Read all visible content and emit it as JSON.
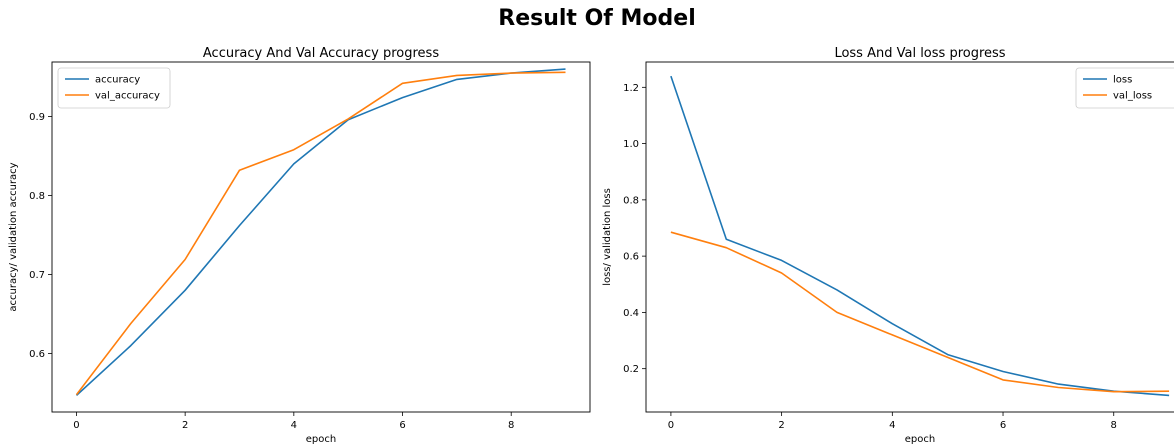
{
  "figure": {
    "suptitle": "Result Of Model"
  },
  "chart_data": [
    {
      "type": "line",
      "title": "Accuracy And Val Accuracy progress",
      "xlabel": "epoch",
      "ylabel": "accuracy/ validation accuracy",
      "xlim": [
        -0.45,
        9.45
      ],
      "ylim": [
        0.526,
        0.969
      ],
      "xticks": [
        0,
        2,
        4,
        6,
        8
      ],
      "yticks": [
        0.6,
        0.7,
        0.8,
        0.9
      ],
      "x": [
        0,
        1,
        2,
        3,
        4,
        5,
        6,
        7,
        8,
        9
      ],
      "legend": "upper left",
      "grid": false,
      "series": [
        {
          "name": "accuracy",
          "color": "#1f77b4",
          "values": [
            0.547,
            0.61,
            0.68,
            0.762,
            0.84,
            0.896,
            0.924,
            0.947,
            0.955,
            0.96
          ]
        },
        {
          "name": "val_accuracy",
          "color": "#ff7f0e",
          "values": [
            0.548,
            0.638,
            0.719,
            0.832,
            0.858,
            0.897,
            0.942,
            0.952,
            0.955,
            0.956
          ]
        }
      ]
    },
    {
      "type": "line",
      "title": "Loss And Val loss progress",
      "xlabel": "epoch",
      "ylabel": "loss/ validation loss",
      "xlim": [
        -0.45,
        9.45
      ],
      "ylim": [
        0.046,
        1.29
      ],
      "xticks": [
        0,
        2,
        4,
        6,
        8
      ],
      "yticks": [
        0.2,
        0.4,
        0.6,
        0.8,
        1.0,
        1.2
      ],
      "x": [
        0,
        1,
        2,
        3,
        4,
        5,
        6,
        7,
        8,
        9
      ],
      "legend": "upper right",
      "grid": false,
      "series": [
        {
          "name": "loss",
          "color": "#1f77b4",
          "values": [
            1.24,
            0.66,
            0.585,
            0.48,
            0.36,
            0.25,
            0.19,
            0.145,
            0.12,
            0.105
          ]
        },
        {
          "name": "val_loss",
          "color": "#ff7f0e",
          "values": [
            0.685,
            0.63,
            0.54,
            0.4,
            0.32,
            0.24,
            0.16,
            0.133,
            0.118,
            0.12
          ]
        }
      ]
    }
  ]
}
